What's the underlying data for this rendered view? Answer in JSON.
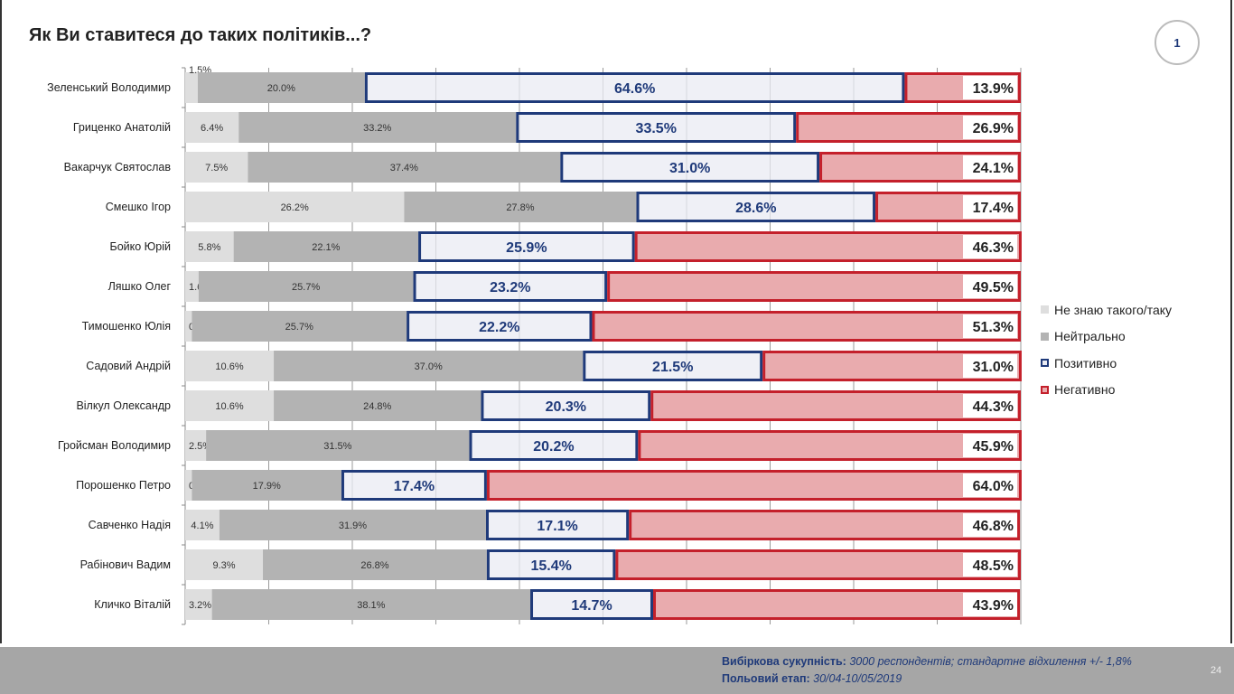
{
  "title": "Як Ви ставитеся до таких політиків...?",
  "page_badge": "1",
  "page_number": "24",
  "footer": {
    "sample_label": "Вибіркова сукупність:",
    "sample_value": "3000 респондентів; стандартне відхилення +/- 1,8%",
    "stage_label": "Польовий етап:",
    "stage_value": "30/04-10/05/2019"
  },
  "colors": {
    "unknown": "#dedede",
    "neutral": "#b3b3b3",
    "positive_fill": "#e9ebf3",
    "positive_stroke": "#1f3a7a",
    "negative_fill": "#e9abae",
    "negative_stroke": "#c4202b"
  },
  "chart_data": {
    "type": "bar",
    "stacked": true,
    "orientation": "horizontal",
    "title": "Як Ви ставитеся до таких політиків...?",
    "xlim": [
      0,
      100
    ],
    "categories": [
      "Зеленський Володимир",
      "Гриценко Анатолій",
      "Вакарчук Святослав",
      "Смешко Ігор",
      "Бойко Юрій",
      "Ляшко Олег",
      "Тимошенко Юлія",
      "Садовий Андрій",
      "Вілкул Олександр",
      "Гройсман Володимир",
      "Порошенко Петро",
      "Савченко Надія",
      "Рабінович Вадим",
      "Кличко Віталій"
    ],
    "series": [
      {
        "name": "Не знаю такого/таку",
        "key": "unknown",
        "values": [
          1.5,
          6.4,
          7.5,
          26.2,
          5.8,
          1.6,
          0.8,
          10.6,
          10.6,
          2.5,
          0.8,
          4.1,
          9.3,
          3.2
        ]
      },
      {
        "name": "Нейтрально",
        "key": "neutral",
        "values": [
          20.0,
          33.2,
          37.4,
          27.8,
          22.1,
          25.7,
          25.7,
          37.0,
          24.8,
          31.5,
          17.9,
          31.9,
          26.8,
          38.1
        ]
      },
      {
        "name": "Позитивно",
        "key": "positive",
        "values": [
          64.6,
          33.5,
          31.0,
          28.6,
          25.9,
          23.2,
          22.2,
          21.5,
          20.3,
          20.2,
          17.4,
          17.1,
          15.4,
          14.7
        ]
      },
      {
        "name": "Негативно",
        "key": "negative",
        "values": [
          13.9,
          26.9,
          24.1,
          17.4,
          46.3,
          49.5,
          51.3,
          31.0,
          44.3,
          45.9,
          64.0,
          46.8,
          48.5,
          43.9
        ]
      }
    ],
    "legend_position": "right",
    "grid": true
  }
}
